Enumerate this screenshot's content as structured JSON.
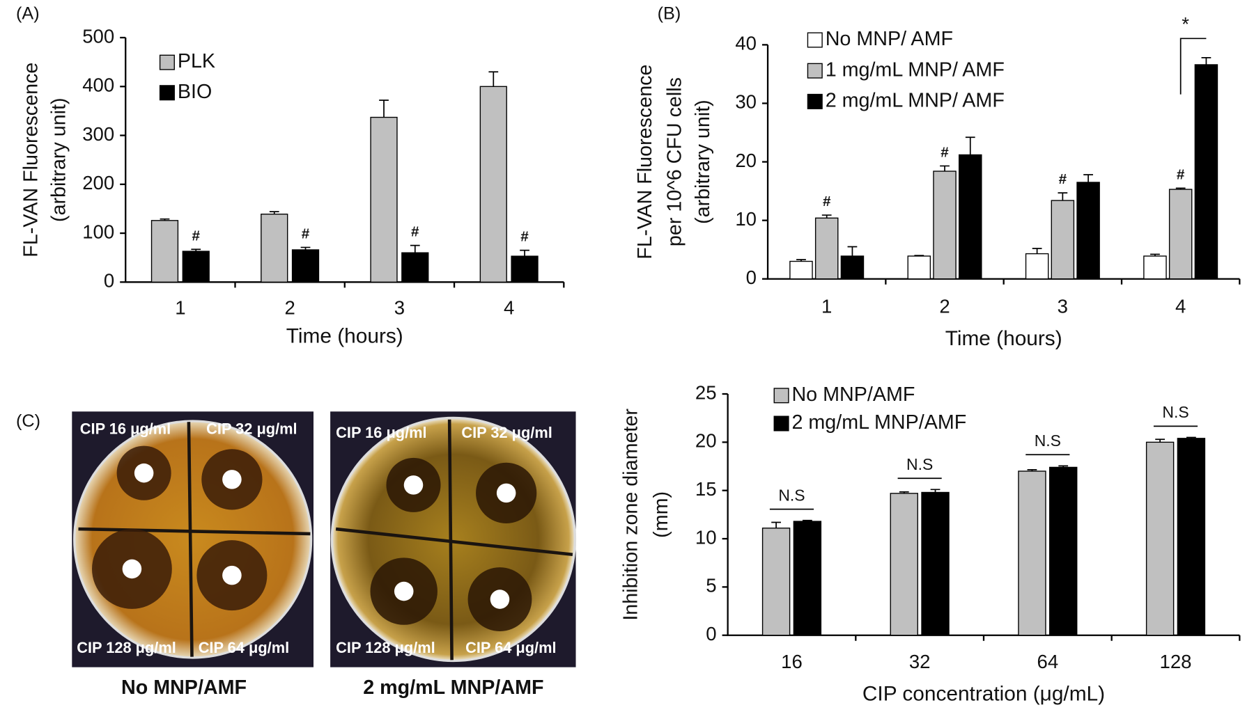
{
  "chart_data": [
    {
      "type": "bar",
      "panel": "(A)",
      "ylabel": [
        "FL-VAN Fluorescence",
        "(arbitrary unit)"
      ],
      "xlabel": "Time (hours)",
      "categories": [
        "1",
        "2",
        "3",
        "4"
      ],
      "series": [
        {
          "name": "PLK",
          "color": "#c0c0c0",
          "values": [
            126,
            139,
            337,
            400
          ],
          "errors": [
            3,
            5,
            35,
            30
          ],
          "marks": [
            null,
            null,
            null,
            null
          ]
        },
        {
          "name": "BIO",
          "color": "#000000",
          "values": [
            63,
            66,
            60,
            53
          ],
          "errors": [
            4,
            5,
            15,
            12
          ],
          "marks": [
            "#",
            "#",
            "#",
            "#"
          ]
        }
      ],
      "ylim": [
        0,
        500
      ],
      "yticks": [
        0,
        100,
        200,
        300,
        400,
        500
      ],
      "grid": false,
      "legend": "upper left"
    },
    {
      "type": "bar",
      "panel": "(B)",
      "ylabel": [
        "FL-VAN Fluorescence",
        "per 10^6 CFU cells",
        "(arbitrary unit)"
      ],
      "xlabel": "Time (hours)",
      "categories": [
        "1",
        "2",
        "3",
        "4"
      ],
      "series": [
        {
          "name": "No MNP/ AMF",
          "color": "#ffffff",
          "values": [
            3,
            3.9,
            4.3,
            3.9
          ],
          "errors": [
            0.3,
            0.1,
            0.9,
            0.3
          ],
          "marks": [
            null,
            null,
            null,
            null
          ]
        },
        {
          "name": "1 mg/mL MNP/ AMF",
          "color": "#c0c0c0",
          "values": [
            10.4,
            18.4,
            13.4,
            15.3
          ],
          "errors": [
            0.5,
            0.9,
            1.3,
            0.2
          ],
          "marks": [
            "#",
            "#",
            "#",
            "#"
          ]
        },
        {
          "name": "2 mg/mL MNP/ AMF",
          "color": "#000000",
          "values": [
            3.9,
            21.2,
            16.5,
            36.6
          ],
          "errors": [
            1.6,
            3.0,
            1.3,
            1.2
          ],
          "marks": [
            null,
            null,
            null,
            null
          ]
        }
      ],
      "brackets": [
        null,
        null,
        null,
        "*"
      ],
      "ylim": [
        0,
        40
      ],
      "yticks": [
        0,
        10,
        20,
        30,
        40
      ],
      "grid": false,
      "legend": "upper left"
    },
    {
      "type": "bar",
      "ylabel": [
        "Inhibition zone diameter",
        "(mm)"
      ],
      "xlabel": "CIP concentration (μg/mL)",
      "categories": [
        "16",
        "32",
        "64",
        "128"
      ],
      "series": [
        {
          "name": "No MNP/AMF",
          "color": "#c0c0c0",
          "values": [
            11.1,
            14.7,
            17.0,
            20.0
          ],
          "errors": [
            0.6,
            0.15,
            0.15,
            0.3
          ]
        },
        {
          "name": "2 mg/mL MNP/AMF",
          "color": "#000000",
          "values": [
            11.8,
            14.8,
            17.4,
            20.4
          ],
          "errors": [
            0.1,
            0.3,
            0.15,
            0.1
          ]
        }
      ],
      "brackets": [
        "N.S",
        "N.S",
        "N.S",
        "N.S"
      ],
      "ylim": [
        0,
        25
      ],
      "yticks": [
        0,
        5,
        10,
        15,
        20,
        25
      ],
      "grid": false,
      "legend": "upper left"
    }
  ],
  "photos": {
    "panel": "(C)",
    "plates": [
      {
        "caption": "No MNP/AMF",
        "labels": [
          "CIP 16 μg/ml",
          "CIP 32 μg/ml",
          "CIP 128 μg/ml",
          "CIP 64 μg/ml"
        ]
      },
      {
        "caption": "2 mg/mL MNP/AMF",
        "labels": [
          "CIP 16 μg/ml",
          "CIP 32 μg/ml",
          "CIP 128 μg/ml",
          "CIP 64 μg/ml"
        ]
      }
    ]
  }
}
